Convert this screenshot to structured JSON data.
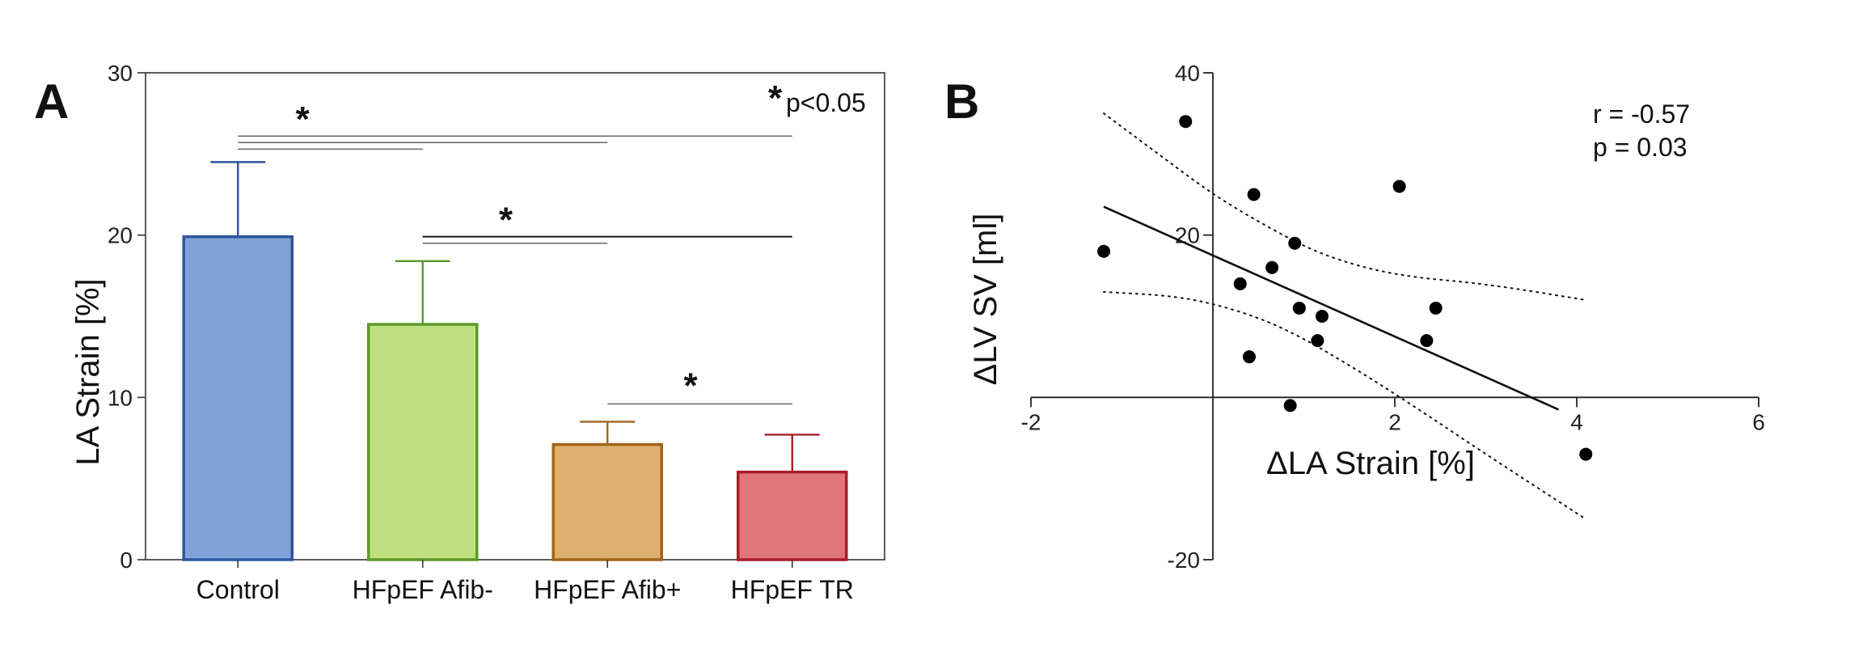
{
  "panel_a": {
    "letter": "A",
    "legend_star": "*",
    "legend_text": "p<0.05",
    "significance_star": "*"
  },
  "panel_b": {
    "letter": "B"
  },
  "chart_data": [
    {
      "type": "bar",
      "title": "",
      "ylabel": "LA Strain [%]",
      "xlabel": "",
      "ylim": [
        0,
        30
      ],
      "yticks": [
        0,
        10,
        20,
        30
      ],
      "categories": [
        "Control",
        "HFpEF Afib-",
        "HFpEF Afib+",
        "HFpEF TR"
      ],
      "values": [
        19.9,
        14.5,
        7.1,
        5.4
      ],
      "error_plus": [
        4.6,
        3.9,
        1.4,
        2.3
      ],
      "colors": {
        "fill": [
          "#7fa3d6",
          "#bfe080",
          "#deaf6e",
          "#e0757b"
        ],
        "edge": [
          "#2e55a0",
          "#5b9a2a",
          "#a0661a",
          "#aa1c28"
        ]
      },
      "significance": [
        {
          "from": 0,
          "to": 1,
          "y": 25.3
        },
        {
          "from": 0,
          "to": 2,
          "y": 25.7
        },
        {
          "from": 0,
          "to": 3,
          "y": 26.1
        },
        {
          "from": 1,
          "to": 2,
          "y": 19.5
        },
        {
          "from": 1,
          "to": 3,
          "y": 19.9
        },
        {
          "from": 2,
          "to": 3,
          "y": 9.6
        }
      ],
      "star_marks": [
        {
          "x": 0.5,
          "y": 27.2
        },
        {
          "x": 1.5,
          "y": 21.0
        },
        {
          "x": 2.5,
          "y": 10.8
        }
      ],
      "legend": "top-right",
      "grid": false
    },
    {
      "type": "scatter",
      "title": "",
      "xlabel": "ΔLA Strain [%]",
      "ylabel": "ΔLV SV [ml]",
      "xlim": [
        -2,
        6
      ],
      "ylim": [
        -20,
        40
      ],
      "xticks": [
        -2,
        2,
        4,
        6
      ],
      "yticks": [
        -20,
        20,
        40
      ],
      "points": [
        {
          "x": -1.2,
          "y": 18
        },
        {
          "x": -0.3,
          "y": 34
        },
        {
          "x": 0.45,
          "y": 25
        },
        {
          "x": 0.3,
          "y": 14
        },
        {
          "x": 0.4,
          "y": 5
        },
        {
          "x": 0.65,
          "y": 16
        },
        {
          "x": 0.9,
          "y": 19
        },
        {
          "x": 0.95,
          "y": 11
        },
        {
          "x": 1.2,
          "y": 10
        },
        {
          "x": 1.15,
          "y": 7
        },
        {
          "x": 0.85,
          "y": -1
        },
        {
          "x": 2.05,
          "y": 26
        },
        {
          "x": 2.35,
          "y": 7
        },
        {
          "x": 2.45,
          "y": 11
        },
        {
          "x": 4.1,
          "y": -7
        }
      ],
      "regression": {
        "x": [
          -1.2,
          3.8
        ],
        "y": [
          23.5,
          -1.5
        ]
      },
      "ci_upper": {
        "x": [
          -1.2,
          -0.6,
          0,
          0.6,
          1.2,
          2,
          3,
          4.1
        ],
        "y": [
          35,
          30,
          25,
          21,
          17.5,
          15,
          14,
          12
        ]
      },
      "ci_lower": {
        "x": [
          -1.2,
          -0.4,
          0.2,
          0.8,
          1.5,
          2.2,
          3,
          4.1
        ],
        "y": [
          13,
          12.5,
          11,
          8.5,
          4,
          -1,
          -7,
          -15
        ]
      },
      "annotations": [
        "r = -0.57",
        "p = 0.03"
      ],
      "grid": false
    }
  ]
}
